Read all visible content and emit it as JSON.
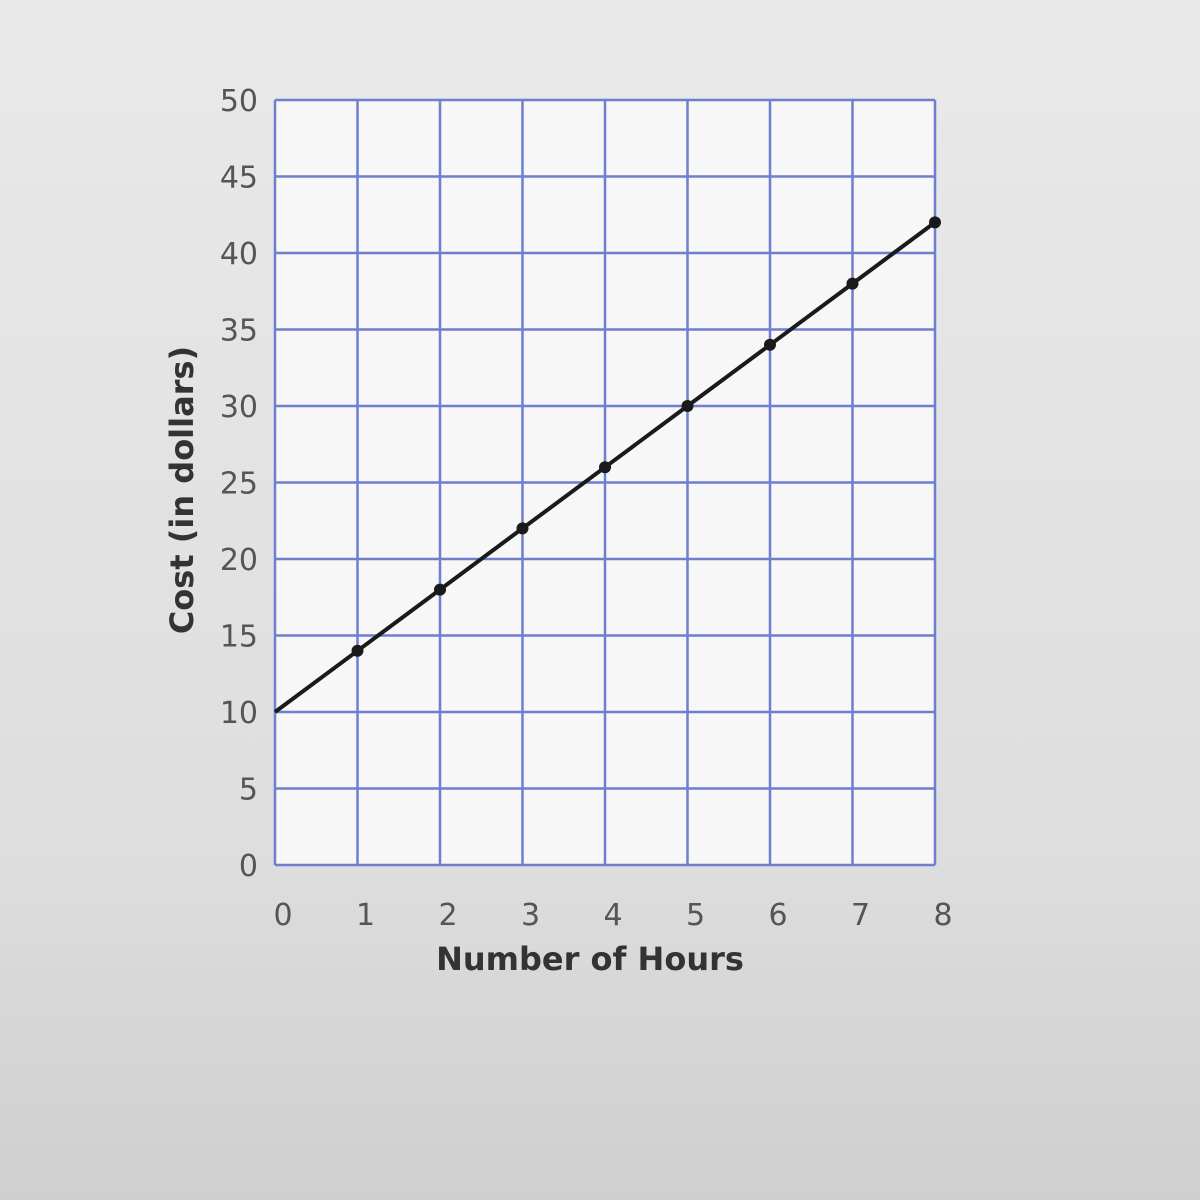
{
  "chart_data": {
    "type": "line",
    "title": "",
    "xlabel": "Number of Hours",
    "ylabel": "Cost (in dollars)",
    "xlim": [
      0,
      8
    ],
    "ylim": [
      0,
      50
    ],
    "x_ticks": [
      "0",
      "1",
      "2",
      "3",
      "4",
      "5",
      "6",
      "7",
      "8"
    ],
    "y_ticks": [
      "0",
      "5",
      "10",
      "15",
      "20",
      "25",
      "30",
      "35",
      "40",
      "45",
      "50"
    ],
    "grid": true,
    "grid_color": "#6f7fd0",
    "line_color": "#1a1a1a",
    "series": [
      {
        "x": [
          0,
          1,
          2,
          3,
          4,
          5,
          6,
          7,
          8
        ],
        "y": [
          10,
          14,
          18,
          22,
          26,
          30,
          34,
          38,
          42
        ]
      }
    ]
  }
}
